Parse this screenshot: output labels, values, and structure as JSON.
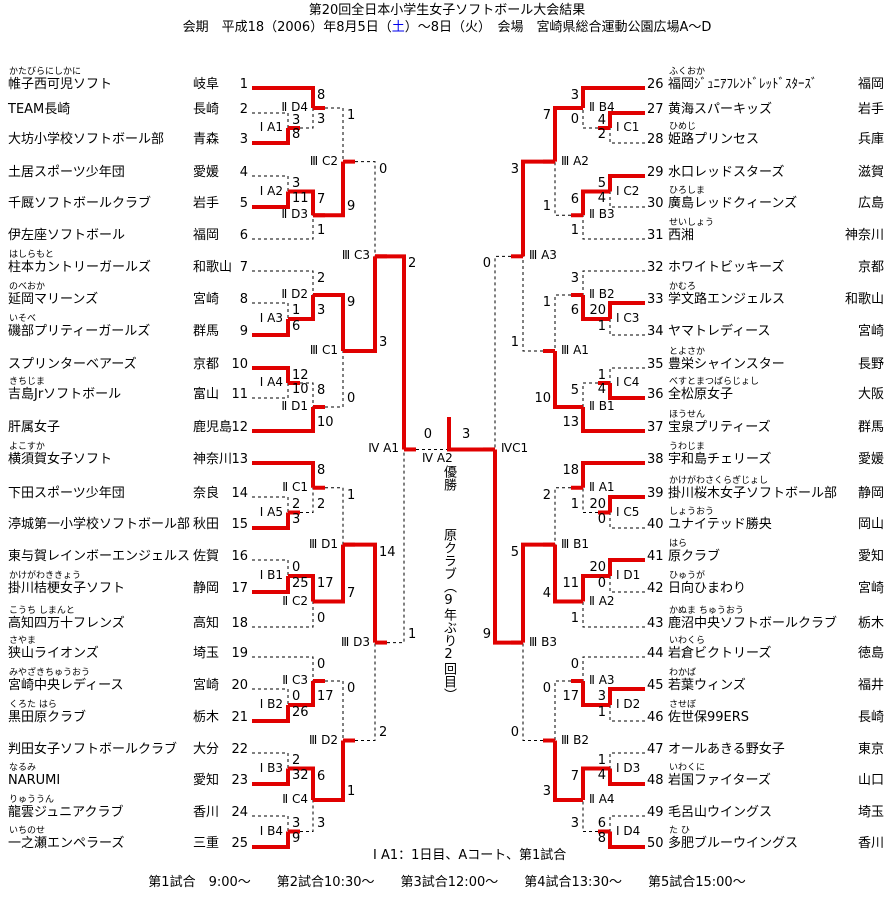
{
  "header": {
    "title": "第20回全日本小学生女子ソフトボール大会結果",
    "subtitle_pre": "会期　平成18（2006）年8月5日（",
    "subtitle_sat": "土",
    "subtitle_post": "）～8日（火）　会場　宮崎県総合運動公園広場A～D"
  },
  "champion": {
    "title": "優勝",
    "name": "原クラブ（9年ぶり2回目）"
  },
  "notes": {
    "legend": "Ⅰ A1：1日目、Aコート、第1試合",
    "schedule": "第1試合　9:00～　　第2試合10:30～　　第3試合12:00～　　第4試合13:30～　　第5試合15:00～"
  },
  "colors": {
    "winner_line": "#e00000",
    "loser_line": "#000000",
    "link_blue": "#0000ee"
  },
  "teams": [
    {
      "seed": 1,
      "name": "帷子西可児ソフト",
      "furigana": "かたびらにしかに",
      "pref": "岐阜"
    },
    {
      "seed": 2,
      "name": "TEAM長崎",
      "furigana": "",
      "pref": "長崎"
    },
    {
      "seed": 3,
      "name": "大坊小学校ソフトボール部",
      "furigana": "",
      "pref": "青森"
    },
    {
      "seed": 4,
      "name": "土居スポーツ少年団",
      "furigana": "",
      "pref": "愛媛"
    },
    {
      "seed": 5,
      "name": "千厩ソフトボールクラブ",
      "furigana": "",
      "pref": "岩手"
    },
    {
      "seed": 6,
      "name": "伊左座ソフトボール",
      "furigana": "",
      "pref": "福岡"
    },
    {
      "seed": 7,
      "name": "柱本カントリーガールズ",
      "furigana": "はしらもと",
      "pref": "和歌山"
    },
    {
      "seed": 8,
      "name": "延岡マリーンズ",
      "furigana": "のべおか",
      "pref": "宮崎"
    },
    {
      "seed": 9,
      "name": "磯部プリティーガールズ",
      "furigana": "いそべ",
      "pref": "群馬"
    },
    {
      "seed": 10,
      "name": "スプリンターベアーズ",
      "furigana": "",
      "pref": "京都"
    },
    {
      "seed": 11,
      "name": "吉島Jrソフトボール",
      "furigana": "きちじま",
      "pref": "富山"
    },
    {
      "seed": 12,
      "name": "肝属女子",
      "furigana": "",
      "pref": "鹿児島"
    },
    {
      "seed": 13,
      "name": "横須賀女子ソフト",
      "furigana": "よこすか",
      "pref": "神奈川"
    },
    {
      "seed": 14,
      "name": "下田スポーツ少年団",
      "furigana": "",
      "pref": "奈良"
    },
    {
      "seed": 15,
      "name": "渟城第一小学校ソフトボール部",
      "furigana": "",
      "pref": "秋田"
    },
    {
      "seed": 16,
      "name": "東与賀レインボーエンジェルス",
      "furigana": "",
      "pref": "佐賀"
    },
    {
      "seed": 17,
      "name": "掛川桔梗女子ソフト",
      "furigana": "かけがわききょう",
      "pref": "静岡"
    },
    {
      "seed": 18,
      "name": "高知四万十フレンズ",
      "furigana": "こうち しまんと",
      "pref": "高知"
    },
    {
      "seed": 19,
      "name": "狭山ライオンズ",
      "furigana": "さやま",
      "pref": "埼玉"
    },
    {
      "seed": 20,
      "name": "宮崎中央レディース",
      "furigana": "みやざきちゅうおう",
      "pref": "宮崎"
    },
    {
      "seed": 21,
      "name": "黒田原クラブ",
      "furigana": "くろた はら",
      "pref": "栃木"
    },
    {
      "seed": 22,
      "name": "判田女子ソフトボールクラブ",
      "furigana": "",
      "pref": "大分"
    },
    {
      "seed": 23,
      "name": "NARUMI",
      "furigana": "なるみ",
      "pref": "愛知"
    },
    {
      "seed": 24,
      "name": "龍雲ジュニアクラブ",
      "furigana": "りゅううん",
      "pref": "香川"
    },
    {
      "seed": 25,
      "name": "一之瀬エンペラーズ",
      "furigana": "いちのせ",
      "pref": "三重"
    },
    {
      "seed": 26,
      "name": "福岡ｼﾞｭﾆｱﾌﾚﾝﾄﾞﾚｯﾄﾞｽﾀｰｽﾞ",
      "furigana": "ふくおか",
      "pref": "福岡"
    },
    {
      "seed": 27,
      "name": "黄海スパーキッズ",
      "furigana": "",
      "pref": "岩手"
    },
    {
      "seed": 28,
      "name": "姫路プリンセス",
      "furigana": "ひめじ",
      "pref": "兵庫"
    },
    {
      "seed": 29,
      "name": "水口レッドスターズ",
      "furigana": "",
      "pref": "滋賀"
    },
    {
      "seed": 30,
      "name": "廣島レッドクィーンズ",
      "furigana": "ひろしま",
      "pref": "広島"
    },
    {
      "seed": 31,
      "name": "西湘",
      "furigana": "せいしょう",
      "pref": "神奈川"
    },
    {
      "seed": 32,
      "name": "ホワイトビッキーズ",
      "furigana": "",
      "pref": "京都"
    },
    {
      "seed": 33,
      "name": "学文路エンジェルス",
      "furigana": "かむろ",
      "pref": "和歌山"
    },
    {
      "seed": 34,
      "name": "ヤマトレディース",
      "furigana": "",
      "pref": "宮崎"
    },
    {
      "seed": 35,
      "name": "豊栄シャインスター",
      "furigana": "とよさか",
      "pref": "長野"
    },
    {
      "seed": 36,
      "name": "全松原女子",
      "furigana": "べすとまつばらじょし",
      "pref": "大阪"
    },
    {
      "seed": 37,
      "name": "宝泉プリティーズ",
      "furigana": "ほうせん",
      "pref": "群馬"
    },
    {
      "seed": 38,
      "name": "宇和島チェリーズ",
      "furigana": "うわじま",
      "pref": "愛媛"
    },
    {
      "seed": 39,
      "name": "掛川桜木女子ソフトボール部",
      "furigana": "かけがわさくらぎじょし",
      "pref": "静岡"
    },
    {
      "seed": 40,
      "name": "ユナイテッド勝央",
      "furigana": "しょうおう",
      "pref": "岡山"
    },
    {
      "seed": 41,
      "name": "原クラブ",
      "furigana": "はら",
      "pref": "愛知"
    },
    {
      "seed": 42,
      "name": "日向ひまわり",
      "furigana": "ひゅうが",
      "pref": "宮崎"
    },
    {
      "seed": 43,
      "name": "鹿沼中央ソフトボールクラブ",
      "furigana": "かぬま ちゅうおう",
      "pref": "栃木"
    },
    {
      "seed": 44,
      "name": "岩倉ビクトリーズ",
      "furigana": "いわくら",
      "pref": "徳島"
    },
    {
      "seed": 45,
      "name": "若葉ウィンズ",
      "furigana": "わかば",
      "pref": "福井"
    },
    {
      "seed": 46,
      "name": "佐世保99ERS",
      "furigana": "させぼ",
      "pref": "長崎"
    },
    {
      "seed": 47,
      "name": "オールあきる野女子",
      "furigana": "",
      "pref": "東京"
    },
    {
      "seed": 48,
      "name": "岩国ファイターズ",
      "furigana": "いわくに",
      "pref": "山口"
    },
    {
      "seed": 49,
      "name": "毛呂山ウイングス",
      "furigana": "",
      "pref": "埼玉"
    },
    {
      "seed": 50,
      "name": "多肥ブルーウイングス",
      "furigana": "た ひ",
      "pref": "香川"
    }
  ],
  "matches": [
    {
      "id": "IA1",
      "label": "Ⅰ A1",
      "top": "T2",
      "bottom": "T3",
      "scores": [
        3,
        8
      ],
      "winner": "b"
    },
    {
      "id": "IA2",
      "label": "Ⅰ A2",
      "top": "T4",
      "bottom": "T5",
      "scores": [
        3,
        11
      ],
      "winner": "b"
    },
    {
      "id": "IA3",
      "label": "Ⅰ A3",
      "top": "T8",
      "bottom": "T9",
      "scores": [
        1,
        6
      ],
      "winner": "b"
    },
    {
      "id": "IA4",
      "label": "Ⅰ A4",
      "top": "T10",
      "bottom": "T11",
      "scores": [
        12,
        10
      ],
      "winner": "t"
    },
    {
      "id": "IA5",
      "label": "Ⅰ A5",
      "top": "T14",
      "bottom": "T15",
      "scores": [
        2,
        3
      ],
      "winner": "b"
    },
    {
      "id": "IB1",
      "label": "Ⅰ B1",
      "top": "T16",
      "bottom": "T17",
      "scores": [
        0,
        25
      ],
      "winner": "b"
    },
    {
      "id": "IB2",
      "label": "Ⅰ B2",
      "top": "T20",
      "bottom": "T21",
      "scores": [
        0,
        26
      ],
      "winner": "b"
    },
    {
      "id": "IB3",
      "label": "Ⅰ B3",
      "top": "T22",
      "bottom": "T23",
      "scores": [
        2,
        32
      ],
      "winner": "b"
    },
    {
      "id": "IB4",
      "label": "Ⅰ B4",
      "top": "T24",
      "bottom": "T25",
      "scores": [
        3,
        9
      ],
      "winner": "b"
    },
    {
      "id": "IID4",
      "label": "Ⅱ D4",
      "top": "T1",
      "bottom": "IA1",
      "scores": [
        8,
        3
      ],
      "winner": "t"
    },
    {
      "id": "IID3",
      "label": "Ⅱ D3",
      "top": "IA2",
      "bottom": "T6",
      "scores": [
        7,
        1
      ],
      "winner": "t"
    },
    {
      "id": "IID2",
      "label": "Ⅱ D2",
      "top": "T7",
      "bottom": "IA3",
      "scores": [
        2,
        3
      ],
      "winner": "b"
    },
    {
      "id": "IID1",
      "label": "Ⅱ D1",
      "top": "IA4",
      "bottom": "T12",
      "scores": [
        8,
        10
      ],
      "winner": "b"
    },
    {
      "id": "IIC1",
      "label": "Ⅱ C1",
      "top": "T13",
      "bottom": "IA5",
      "scores": [
        8,
        2
      ],
      "winner": "t"
    },
    {
      "id": "IIC2",
      "label": "Ⅱ C2",
      "top": "IB1",
      "bottom": "T18",
      "scores": [
        17,
        0
      ],
      "winner": "t"
    },
    {
      "id": "IIC3",
      "label": "Ⅱ C3",
      "top": "T19",
      "bottom": "IB2",
      "scores": [
        0,
        17
      ],
      "winner": "b"
    },
    {
      "id": "IIC4",
      "label": "Ⅱ C4",
      "top": "IB3",
      "bottom": "IB4",
      "scores": [
        6,
        3
      ],
      "winner": "t"
    },
    {
      "id": "IIIC2",
      "label": "Ⅲ C2",
      "top": "IID4",
      "bottom": "IID3",
      "scores": [
        1,
        9
      ],
      "winner": "b"
    },
    {
      "id": "IIIC1",
      "label": "Ⅲ C1",
      "top": "IID2",
      "bottom": "IID1",
      "scores": [
        9,
        0
      ],
      "winner": "t"
    },
    {
      "id": "IIID1",
      "label": "Ⅲ D1",
      "top": "IIC1",
      "bottom": "IIC2",
      "scores": [
        1,
        7
      ],
      "winner": "b"
    },
    {
      "id": "IIID2",
      "label": "Ⅲ D2",
      "top": "IIC3",
      "bottom": "IIC4",
      "scores": [
        0,
        1
      ],
      "winner": "b"
    },
    {
      "id": "IIIC3",
      "label": "Ⅲ C3",
      "top": "IIIC2",
      "bottom": "IIIC1",
      "scores": [
        0,
        3
      ],
      "winner": "b"
    },
    {
      "id": "IIID3",
      "label": "Ⅲ D3",
      "top": "IIID1",
      "bottom": "IIID2",
      "scores": [
        14,
        2
      ],
      "winner": "t"
    },
    {
      "id": "IVA1",
      "label": "Ⅳ A1",
      "top": "IIIC3",
      "bottom": "IIID3",
      "scores": [
        2,
        1
      ],
      "winner": "t"
    },
    {
      "id": "IC1",
      "label": "Ⅰ C1",
      "top": "T27",
      "bottom": "T28",
      "scores": [
        4,
        2
      ],
      "winner": "t"
    },
    {
      "id": "IC2",
      "label": "Ⅰ C2",
      "top": "T29",
      "bottom": "T30",
      "scores": [
        5,
        4
      ],
      "winner": "t"
    },
    {
      "id": "IC3",
      "label": "Ⅰ C3",
      "top": "T33",
      "bottom": "T34",
      "scores": [
        20,
        1
      ],
      "winner": "t"
    },
    {
      "id": "IC4",
      "label": "Ⅰ C4",
      "top": "T35",
      "bottom": "T36",
      "scores": [
        1,
        4
      ],
      "winner": "b"
    },
    {
      "id": "IC5",
      "label": "Ⅰ C5",
      "top": "T39",
      "bottom": "T40",
      "scores": [
        20,
        0
      ],
      "winner": "t"
    },
    {
      "id": "ID1",
      "label": "Ⅰ D1",
      "top": "T41",
      "bottom": "T42",
      "scores": [
        20,
        0
      ],
      "winner": "t"
    },
    {
      "id": "ID2",
      "label": "Ⅰ D2",
      "top": "T45",
      "bottom": "T46",
      "scores": [
        3,
        1
      ],
      "winner": "t"
    },
    {
      "id": "ID3",
      "label": "Ⅰ D3",
      "top": "T47",
      "bottom": "T48",
      "scores": [
        1,
        4
      ],
      "winner": "b"
    },
    {
      "id": "ID4",
      "label": "Ⅰ D4",
      "top": "T49",
      "bottom": "T50",
      "scores": [
        6,
        8
      ],
      "winner": "b"
    },
    {
      "id": "IIB4",
      "label": "Ⅱ B4",
      "top": "T26",
      "bottom": "IC1",
      "scores": [
        3,
        0
      ],
      "winner": "t"
    },
    {
      "id": "IIB3",
      "label": "Ⅱ B3",
      "top": "IC2",
      "bottom": "T31",
      "scores": [
        6,
        1
      ],
      "winner": "t"
    },
    {
      "id": "IIB2",
      "label": "Ⅱ B2",
      "top": "T32",
      "bottom": "IC3",
      "scores": [
        3,
        6
      ],
      "winner": "b"
    },
    {
      "id": "IIB1",
      "label": "Ⅱ B1",
      "top": "IC4",
      "bottom": "T37",
      "scores": [
        5,
        13
      ],
      "winner": "b"
    },
    {
      "id": "IIA1",
      "label": "Ⅱ A1",
      "top": "T38",
      "bottom": "IC5",
      "scores": [
        18,
        1
      ],
      "winner": "t"
    },
    {
      "id": "IIA2",
      "label": "Ⅱ A2",
      "top": "ID1",
      "bottom": "T43",
      "scores": [
        11,
        1
      ],
      "winner": "t"
    },
    {
      "id": "IIA3",
      "label": "Ⅱ A3",
      "top": "T44",
      "bottom": "ID2",
      "scores": [
        0,
        17
      ],
      "winner": "b"
    },
    {
      "id": "IIA4",
      "label": "Ⅱ A4",
      "top": "ID3",
      "bottom": "ID4",
      "scores": [
        7,
        3
      ],
      "winner": "t"
    },
    {
      "id": "IIIA2",
      "label": "Ⅲ A2",
      "top": "IIB4",
      "bottom": "IIB3",
      "scores": [
        7,
        1
      ],
      "winner": "t"
    },
    {
      "id": "IIIA1",
      "label": "Ⅲ A1",
      "top": "IIB2",
      "bottom": "IIB1",
      "scores": [
        1,
        10
      ],
      "winner": "b"
    },
    {
      "id": "IIIB1",
      "label": "Ⅲ B1",
      "top": "IIA1",
      "bottom": "IIA2",
      "scores": [
        2,
        4
      ],
      "winner": "b"
    },
    {
      "id": "IIIB2",
      "label": "Ⅲ B2",
      "top": "IIA3",
      "bottom": "IIA4",
      "scores": [
        0,
        3
      ],
      "winner": "b"
    },
    {
      "id": "IIIA3",
      "label": "Ⅲ A3",
      "top": "IIIA2",
      "bottom": "IIIA1",
      "scores": [
        3,
        1
      ],
      "winner": "t"
    },
    {
      "id": "IIIB3",
      "label": "Ⅲ B3",
      "top": "IIIB1",
      "bottom": "IIIB2",
      "scores": [
        5,
        0
      ],
      "winner": "t"
    },
    {
      "id": "IVC1",
      "label": "ⅣC1",
      "top": "IIIA3",
      "bottom": "IIIB3",
      "scores": [
        0,
        9
      ],
      "winner": "b"
    },
    {
      "id": "IVA2",
      "label": "Ⅳ A2",
      "top": "IVA1",
      "bottom": "IVC1",
      "scores": [
        0,
        3
      ],
      "winner": "b"
    }
  ]
}
